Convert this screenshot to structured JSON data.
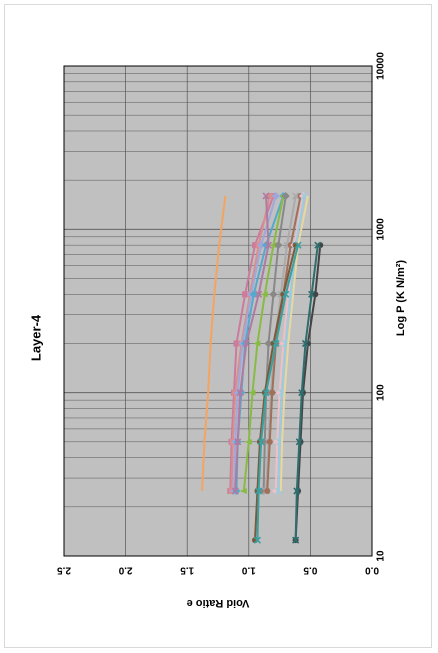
{
  "chart_data": {
    "type": "line",
    "title": "Layer-4",
    "xlabel": "Log P (K N/m²)",
    "ylabel": "Void Ratio e",
    "x_scale": "log",
    "xlim": [
      10,
      10000
    ],
    "ylim": [
      0.0,
      2.5
    ],
    "x_ticks": [
      "10",
      "100",
      "1000",
      "10000"
    ],
    "y_ticks": [
      "0.0",
      "0.5",
      "1.0",
      "1.5",
      "2.0",
      "2.5"
    ],
    "grid": true,
    "plot_background": "#c0c0c0",
    "series": [
      {
        "color": "#f4a460",
        "marker": "none",
        "x": [
          25,
          50,
          100,
          200,
          400,
          800,
          1600
        ],
        "y": [
          1.38,
          1.36,
          1.33,
          1.31,
          1.28,
          1.24,
          1.19
        ]
      },
      {
        "color": "#cc7a9e",
        "marker": "square",
        "x": [
          25,
          50,
          100,
          200,
          400,
          800,
          1600
        ],
        "y": [
          1.15,
          1.14,
          1.12,
          1.1,
          1.03,
          0.95,
          0.8
        ]
      },
      {
        "color": "#d98e8e",
        "marker": "square",
        "x": [
          25,
          50,
          100,
          200,
          400,
          800,
          1600
        ],
        "y": [
          1.14,
          1.13,
          1.11,
          1.06,
          0.99,
          0.92,
          0.83
        ]
      },
      {
        "color": "#9fa8da",
        "marker": "diamond",
        "x": [
          25,
          50,
          100,
          200,
          400,
          800,
          1600
        ],
        "y": [
          1.12,
          1.11,
          1.09,
          1.05,
          0.98,
          0.9,
          0.78
        ]
      },
      {
        "color": "#55aacc",
        "marker": "diamond",
        "x": [
          25,
          50,
          100,
          200,
          400,
          800,
          1600
        ],
        "y": [
          1.1,
          1.09,
          1.06,
          1.03,
          0.96,
          0.86,
          0.72
        ]
      },
      {
        "color": "#b07aa1",
        "marker": "x",
        "x": [
          25,
          50,
          100,
          200,
          400,
          800,
          1600
        ],
        "y": [
          1.11,
          1.09,
          1.07,
          1.02,
          0.92,
          0.84,
          0.86
        ]
      },
      {
        "color": "#88bb44",
        "marker": "triangle",
        "x": [
          25,
          50,
          100,
          200,
          400,
          800,
          1600
        ],
        "y": [
          1.04,
          1.0,
          0.97,
          0.93,
          0.87,
          0.8,
          0.72
        ]
      },
      {
        "color": "#888888",
        "marker": "diamond",
        "x": [
          25,
          50,
          100,
          200,
          400,
          800,
          1600
        ],
        "y": [
          0.88,
          0.87,
          0.86,
          0.84,
          0.8,
          0.76,
          0.7
        ]
      },
      {
        "color": "#aaaaaa",
        "marker": "x",
        "x": [
          25,
          50,
          100,
          200,
          400,
          800,
          1600
        ],
        "y": [
          0.86,
          0.84,
          0.82,
          0.79,
          0.74,
          0.69,
          0.62
        ]
      },
      {
        "color": "#a2705a",
        "marker": "circle",
        "x": [
          25,
          50,
          100,
          200,
          400,
          800,
          1600
        ],
        "y": [
          0.85,
          0.83,
          0.81,
          0.78,
          0.72,
          0.66,
          0.58
        ]
      },
      {
        "color": "#f0c0c8",
        "marker": "diamond",
        "x": [
          25,
          50,
          100,
          200,
          400,
          800,
          1600
        ],
        "y": [
          0.78,
          0.77,
          0.75,
          0.72,
          0.68,
          0.63,
          0.56
        ]
      },
      {
        "color": "#9acce0",
        "marker": "x",
        "x": [
          25,
          50,
          100,
          200,
          400,
          800,
          1600
        ],
        "y": [
          0.76,
          0.75,
          0.73,
          0.7,
          0.66,
          0.62,
          0.55
        ]
      },
      {
        "color": "#e8d8a0",
        "marker": "none",
        "x": [
          25,
          50,
          100,
          200,
          400,
          800,
          1600
        ],
        "y": [
          0.74,
          0.73,
          0.71,
          0.68,
          0.64,
          0.6,
          0.52
        ]
      },
      {
        "color": "#444444",
        "marker": "circle",
        "x": [
          12.5,
          25,
          50,
          100,
          200,
          400,
          800
        ],
        "y": [
          0.62,
          0.6,
          0.58,
          0.56,
          0.52,
          0.46,
          0.42
        ]
      },
      {
        "color": "#2e6e6e",
        "marker": "x",
        "x": [
          12.5,
          25,
          50,
          100,
          200,
          400,
          800
        ],
        "y": [
          0.62,
          0.61,
          0.59,
          0.57,
          0.54,
          0.49,
          0.44
        ]
      },
      {
        "color": "#7a5a3a",
        "marker": "circle",
        "x": [
          12.5,
          25,
          50,
          100,
          200,
          400,
          800
        ],
        "y": [
          0.95,
          0.93,
          0.91,
          0.87,
          0.8,
          0.72,
          0.62
        ]
      },
      {
        "color": "#3aa0a0",
        "marker": "x",
        "x": [
          12.5,
          25,
          50,
          100,
          200,
          400,
          800
        ],
        "y": [
          0.93,
          0.92,
          0.9,
          0.86,
          0.78,
          0.7,
          0.6
        ]
      }
    ]
  }
}
